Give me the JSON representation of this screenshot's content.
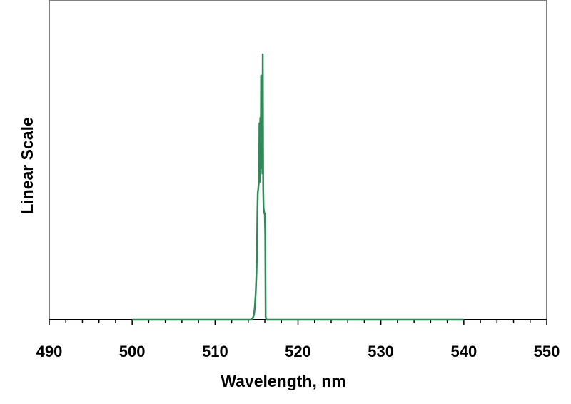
{
  "chart_data": {
    "type": "line",
    "title": "",
    "xlabel": "Wavelength, nm",
    "ylabel": "Linear Scale",
    "xlim": [
      490,
      550
    ],
    "ylim": [
      0,
      1
    ],
    "x_ticks": [
      "490",
      "500",
      "510",
      "520",
      "530",
      "540",
      "550"
    ],
    "x_minor_step": 2,
    "y_ticks_shown": false,
    "grid": false,
    "legend": "none",
    "colors": {
      "line": "#2e8b57",
      "plot_border": "#808080",
      "axis": "#000000"
    },
    "series": [
      {
        "x": [
          500,
          514.4,
          514.6,
          514.7,
          514.8,
          514.9,
          515.0,
          515.05,
          515.1,
          515.15,
          515.2,
          515.25,
          515.3,
          515.35,
          515.4,
          515.45,
          515.5,
          515.55,
          515.6,
          515.65,
          515.7,
          515.75,
          515.8,
          515.85,
          515.9,
          515.95,
          516.0,
          516.05,
          516.1,
          516.2,
          516.4,
          540
        ],
        "y": [
          0,
          0,
          0.01,
          0.02,
          0.05,
          0.1,
          0.18,
          0.25,
          0.4,
          0.48,
          0.49,
          0.51,
          0.52,
          0.74,
          0.52,
          0.76,
          0.57,
          0.92,
          0.58,
          0.8,
          0.55,
          1.0,
          0.5,
          0.42,
          0.41,
          0.4,
          0.4,
          0.32,
          0.01,
          0,
          0,
          0
        ]
      }
    ]
  }
}
